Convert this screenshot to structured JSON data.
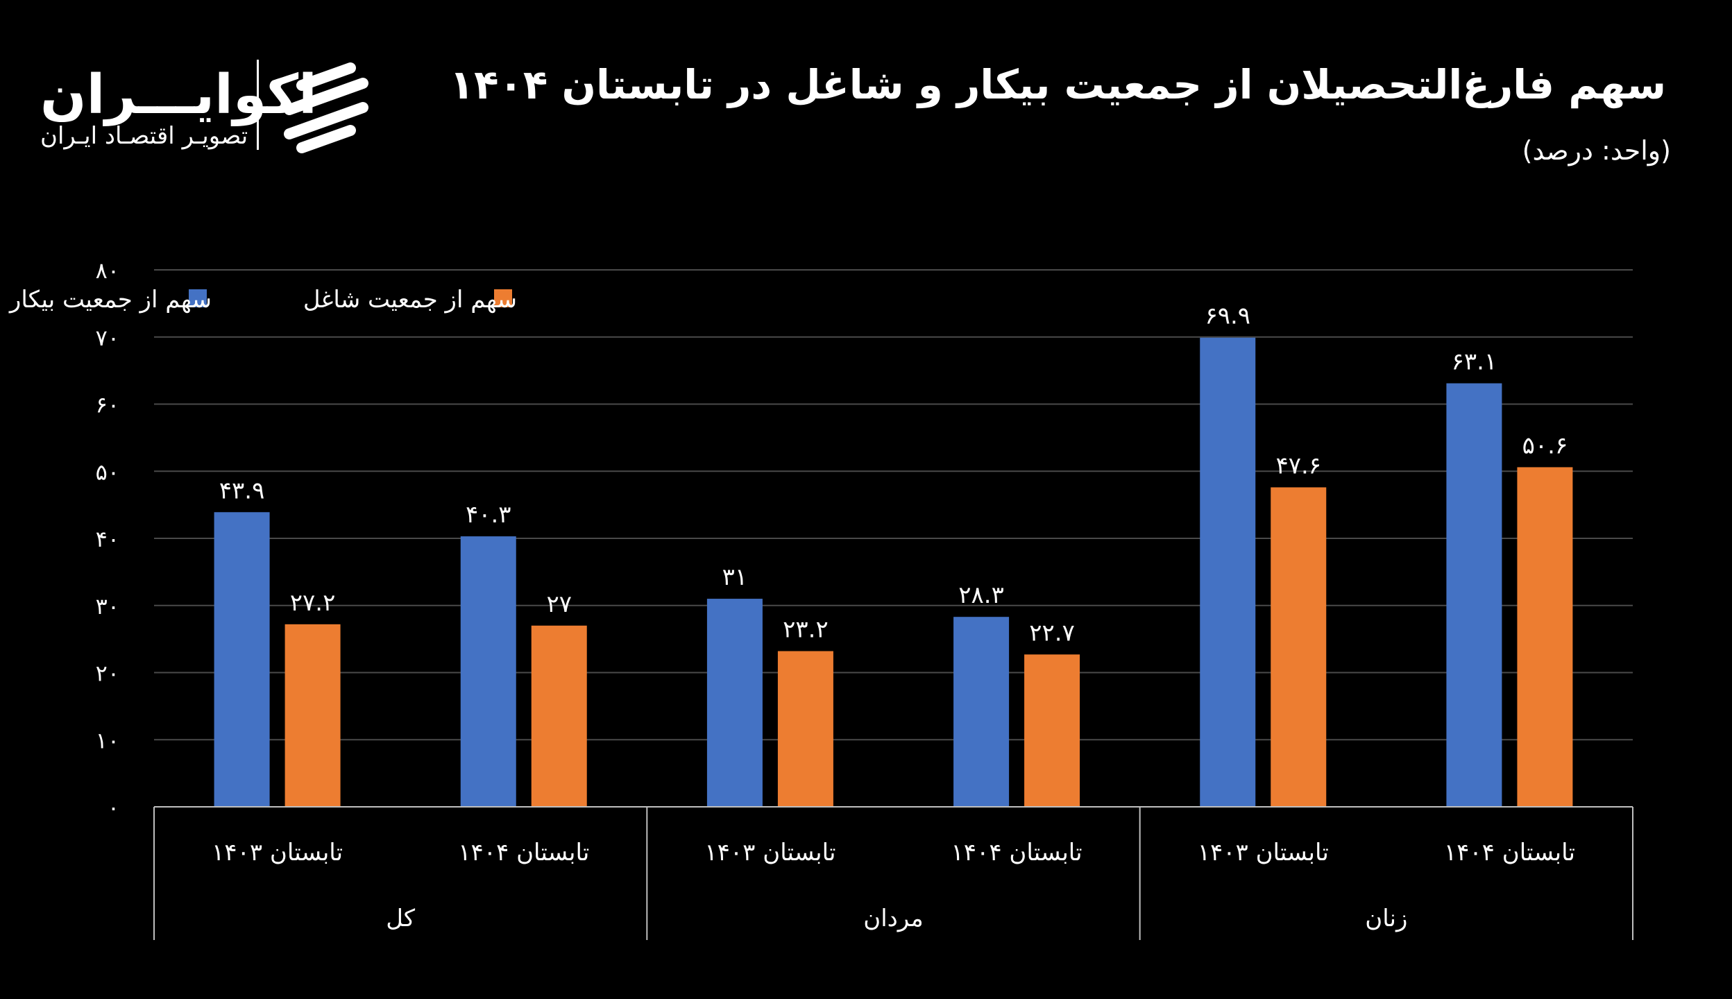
{
  "header": {
    "title": "سهم فارغ‌التحصیلان از جمعیت بیکار و شاغل در تابستان ۱۴۰۴",
    "subtitle": "(واحد: درصد)"
  },
  "logo": {
    "name": "اکوایـــران",
    "tagline": "تصویـر اقتصـاد ایـران"
  },
  "chart_data": {
    "type": "bar",
    "title": "سهم فارغ‌التحصیلان از جمعیت بیکار و شاغل در تابستان ۱۴۰۴",
    "subtitle": "(واحد: درصد)",
    "ylim": [
      0,
      80
    ],
    "ticks": [
      0,
      10,
      20,
      30,
      40,
      50,
      60,
      70,
      80
    ],
    "tick_labels": [
      "۰",
      "۱۰",
      "۲۰",
      "۳۰",
      "۴۰",
      "۵۰",
      "۶۰",
      "۷۰",
      "۸۰"
    ],
    "grid": true,
    "legend_position": "top-left",
    "categories": [
      "تابستان ۱۴۰۳",
      "تابستان ۱۴۰۴",
      "تابستان ۱۴۰۳",
      "تابستان ۱۴۰۴",
      "تابستان ۱۴۰۳",
      "تابستان ۱۴۰۴"
    ],
    "groups": [
      {
        "label": "کل",
        "span": 2
      },
      {
        "label": "مردان",
        "span": 2
      },
      {
        "label": "زنان",
        "span": 2
      }
    ],
    "series": [
      {
        "name": "سهم از جمعیت بیکار",
        "color": "#4472C4",
        "values": [
          43.9,
          40.3,
          31,
          28.3,
          69.9,
          63.1
        ],
        "labels": [
          "۴۳.۹",
          "۴۰.۳",
          "۳۱",
          "۲۸.۳",
          "۶۹.۹",
          "۶۳.۱"
        ]
      },
      {
        "name": "سهم از جمعیت شاغل",
        "color": "#ED7D31",
        "values": [
          27.2,
          27,
          23.2,
          22.7,
          47.6,
          50.6
        ],
        "labels": [
          "۲۷.۲",
          "۲۷",
          "۲۳.۲",
          "۲۲.۷",
          "۴۷.۶",
          "۵۰.۶"
        ]
      }
    ],
    "colors": {
      "grid": "#4a4a4a",
      "axis": "#bfbfbf",
      "background": "#000000"
    }
  }
}
